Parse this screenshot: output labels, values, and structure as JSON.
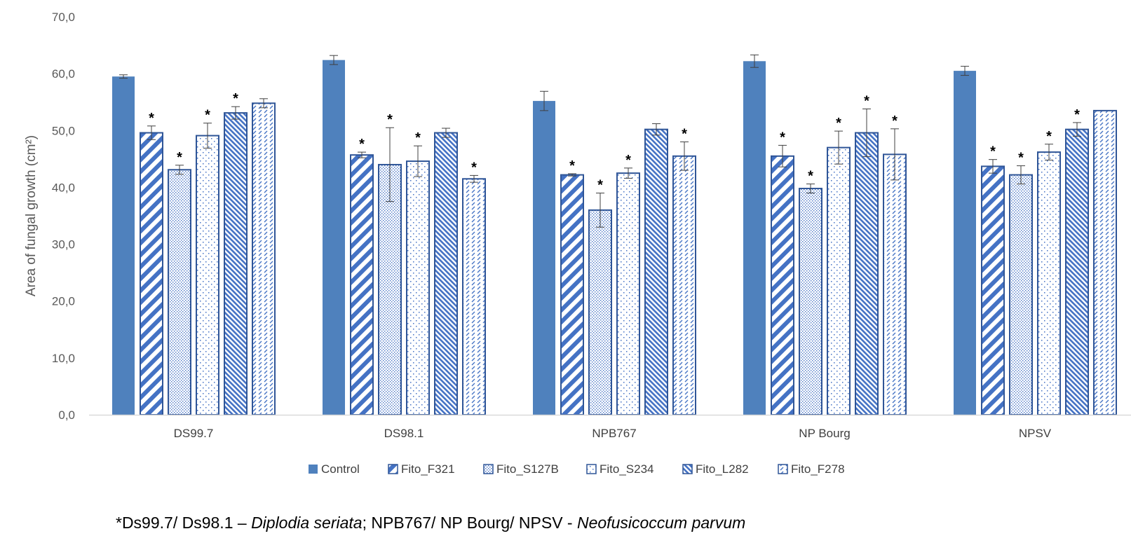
{
  "chart_data": {
    "type": "bar",
    "title": "",
    "xlabel": "",
    "ylabel": "Area of fungal growth (cm²)",
    "ylim": [
      0,
      70
    ],
    "yticks": [
      "0,0",
      "10,0",
      "20,0",
      "30,0",
      "40,0",
      "50,0",
      "60,0",
      "70,0"
    ],
    "grid": false,
    "legend_position": "bottom",
    "categories": [
      "DS99.7",
      "DS98.1",
      "NPB767",
      "NP Bourg",
      "NPSV"
    ],
    "series": [
      {
        "name": "Control",
        "pattern": "solid",
        "values": [
          59.5,
          62.4,
          55.2,
          62.2,
          60.5
        ],
        "errors": [
          0.3,
          0.8,
          1.7,
          1.1,
          0.8
        ],
        "significant": [
          false,
          false,
          false,
          false,
          false
        ]
      },
      {
        "name": "Fito_F321",
        "pattern": "diag-wide",
        "values": [
          49.6,
          45.7,
          42.2,
          45.5,
          43.7
        ],
        "errors": [
          1.2,
          0.5,
          0.2,
          1.9,
          1.2
        ],
        "significant": [
          true,
          true,
          true,
          true,
          true
        ]
      },
      {
        "name": "Fito_S127B",
        "pattern": "dots",
        "values": [
          43.1,
          44.0,
          36.0,
          39.8,
          42.2
        ],
        "errors": [
          0.8,
          6.5,
          3.0,
          0.8,
          1.6
        ],
        "significant": [
          true,
          true,
          true,
          true,
          true
        ]
      },
      {
        "name": "Fito_S234",
        "pattern": "sparse",
        "values": [
          49.1,
          44.6,
          42.5,
          47.0,
          46.2
        ],
        "errors": [
          2.2,
          2.7,
          0.9,
          2.9,
          1.4
        ],
        "significant": [
          true,
          true,
          true,
          true,
          true
        ]
      },
      {
        "name": "Fito_L282",
        "pattern": "diag-fine",
        "values": [
          53.1,
          49.6,
          50.2,
          49.6,
          50.2
        ],
        "errors": [
          1.1,
          0.8,
          1.0,
          4.2,
          1.2
        ],
        "significant": [
          true,
          false,
          false,
          true,
          true
        ]
      },
      {
        "name": "Fito_F278",
        "pattern": "dashes",
        "values": [
          54.8,
          41.5,
          45.5,
          45.8,
          53.5
        ],
        "errors": [
          0.8,
          0.6,
          2.5,
          4.5,
          0.0
        ],
        "significant": [
          false,
          true,
          true,
          true,
          false
        ]
      }
    ],
    "colors": {
      "control": "#4f81bd",
      "outline": "#2f5597",
      "pattern": "#4472c4",
      "axis": "#d9d9d9",
      "error": "#404040"
    },
    "significance_marker": "*"
  },
  "footnote": {
    "part1": "*Ds99.7/ Ds98.1 – ",
    "part2": "Diplodia seriata",
    "part3": "; NPB767/ NP Bourg/ NPSV - ",
    "part4": "Neofusicoccum parvum"
  }
}
